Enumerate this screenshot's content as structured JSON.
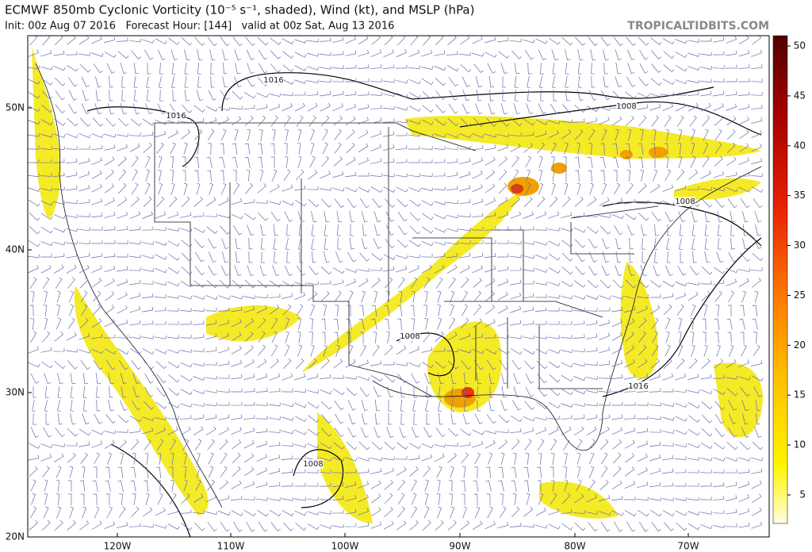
{
  "header": {
    "title": "ECMWF 850mb Cyclonic Vorticity (10⁻⁵ s⁻¹, shaded), Wind (kt), and MSLP (hPa)",
    "subtitle": "Init: 00z Aug 07 2016   Forecast Hour: [144]   valid at 00z Sat, Aug 13 2016",
    "watermark": "TROPICALTIDBITS.COM"
  },
  "map": {
    "latitude_labels": [
      "50N",
      "40N",
      "30N",
      "20N"
    ],
    "longitude_labels": [
      "120W",
      "110W",
      "100W",
      "90W",
      "80W",
      "70W"
    ],
    "isobar_labels": [
      "1016",
      "1016",
      "1008",
      "1008",
      "1008",
      "1008",
      "1016"
    ]
  },
  "colorbar": {
    "ticks": [
      5,
      10,
      15,
      20,
      25,
      30,
      35,
      40,
      45,
      50
    ]
  }
}
